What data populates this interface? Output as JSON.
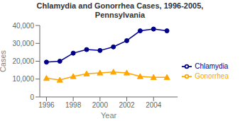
{
  "chart_data": {
    "type": "line",
    "title": "Chlamydia and Gonorrhea Cases, 1996-2005,\nPennsylvania",
    "x_label": "Year",
    "y_label": "Cases",
    "x": [
      1996,
      1997,
      1998,
      1999,
      2000,
      2001,
      2002,
      2003,
      2004,
      2005
    ],
    "series": [
      {
        "name": "Chlamydia",
        "color": "#00008B",
        "marker": "circle",
        "values": [
          19500,
          20000,
          24500,
          26500,
          26000,
          28000,
          31500,
          37000,
          38000,
          37000
        ]
      },
      {
        "name": "Gonorrhea",
        "color": "#FFA500",
        "marker": "triangle",
        "values": [
          10500,
          9500,
          11500,
          13000,
          13500,
          14000,
          13500,
          11500,
          11000,
          11000
        ]
      }
    ],
    "xlim": [
      1995.5,
      2005.8
    ],
    "xticks": [
      1996,
      1998,
      2000,
      2002,
      2004
    ],
    "ylim": [
      0,
      40000
    ],
    "yticks": [
      0,
      {
        "value": 10000,
        "label": "10,000"
      },
      {
        "value": 20000,
        "label": "20,000"
      },
      {
        "value": 30000,
        "label": "30,000"
      },
      {
        "value": 40000,
        "label": "40,000"
      }
    ],
    "grid": false,
    "legend": "right"
  }
}
